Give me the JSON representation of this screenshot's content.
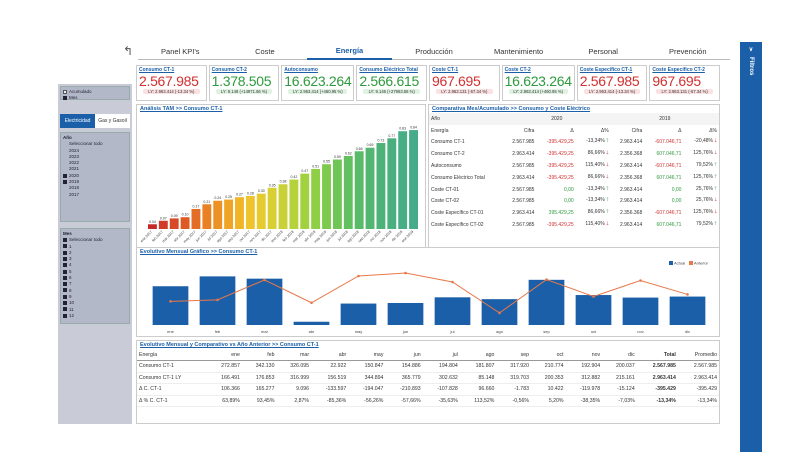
{
  "nav": {
    "tabs": [
      "Panel KPI's",
      "Coste",
      "Energía",
      "Producción",
      "Mantenimiento",
      "Personal",
      "Prevención"
    ],
    "active": 2
  },
  "filters_label": "Filtros",
  "left_panel": {
    "mode_options": [
      "Acumulado",
      "Mes"
    ],
    "toggle": [
      "Electricidad",
      "Gas y Gasoil"
    ],
    "year_header": "Año",
    "years": [
      "Seleccionar todo",
      "2024",
      "2023",
      "2022",
      "2021",
      "2020",
      "2019",
      "2018",
      "2017"
    ],
    "years_checked": [
      false,
      false,
      false,
      false,
      false,
      true,
      true,
      false,
      false
    ],
    "month_header": "Mes",
    "months": [
      "Seleccionar todo",
      "1",
      "2",
      "3",
      "4",
      "5",
      "6",
      "7",
      "8",
      "9",
      "10",
      "11",
      "12"
    ]
  },
  "kpis": [
    {
      "title": "Consumo CT-1",
      "value": "2.567.985",
      "sub": "LY: 2.963.414 (-13.34 %)",
      "tone": "red"
    },
    {
      "title": "Consumo CT-2",
      "value": "1.378.505",
      "sub": "LY: 9.148 (+14971.66 %)",
      "tone": "green"
    },
    {
      "title": "Autoconsumo",
      "value": "16.623.264",
      "sub": "LY: 2.963.414 (+460.95 %)",
      "tone": "green"
    },
    {
      "title": "Consumo Eléctrico Total",
      "value": "2.566.615",
      "sub": "LY: 9.146 (+27963.66 %)",
      "tone": "green"
    },
    {
      "title": "Coste CT-1",
      "value": "967.695",
      "sub": "LY: 2.963.131 (-67.34 %)",
      "tone": "red"
    },
    {
      "title": "Coste CT-2",
      "value": "16.623.264",
      "sub": "LY: 2.963.414 (+460.95 %)",
      "tone": "green"
    },
    {
      "title": "Coste Específico CT-1",
      "value": "2.567.985",
      "sub": "LY: 2.963.414 (-13.34 %)",
      "tone": "red"
    },
    {
      "title": "Coste Específico CT-2",
      "value": "967.695",
      "sub": "LY: 2.963.131 (-67.34 %)",
      "tone": "red"
    }
  ],
  "tam": {
    "title": "Análisis TAM >> Consumo CT-1"
  },
  "comp": {
    "title": "Comparativa Mes/Acumulado >> Consumo y Coste Eléctrico",
    "year_label": "Año",
    "year_a": "2020",
    "year_b": "2019",
    "headers": [
      "Energía",
      "Cifra",
      "Δ",
      "Δ%",
      "Cifra",
      "Δ",
      "Δ%"
    ],
    "rows": [
      {
        "name": "Consumo CT-1",
        "c1": "2.567.985",
        "d1": "-395.429,25",
        "p1": "-13,34%",
        "a1": "up",
        "c2": "2.963.414",
        "d2": "-607.046,71",
        "p2": "-20,48%",
        "a2": "dn"
      },
      {
        "name": "Consumo CT-2",
        "c1": "2.963.414",
        "d1": "-395.429,25",
        "p1": "86,66%",
        "a1": "dn",
        "c2": "2.356.368",
        "d2": "607.046,71",
        "p2": "125,76%",
        "a2": "dn"
      },
      {
        "name": "Autoconsumo",
        "c1": "2.567.985",
        "d1": "-395.429,25",
        "p1": "115,40%",
        "a1": "dn",
        "c2": "2.963.414",
        "d2": "-607.046,71",
        "p2": "79,52%",
        "a2": "up"
      },
      {
        "name": "Consumo Eléctrico Total",
        "c1": "2.963.414",
        "d1": "-395.429,25",
        "p1": "86,66%",
        "a1": "dn",
        "c2": "2.356.368",
        "d2": "607.046,71",
        "p2": "125,76%",
        "a2": "up"
      },
      {
        "name": "Coste CT-01",
        "c1": "2.567.985",
        "d1": "0,00",
        "p1": "-13,34%",
        "a1": "up",
        "c2": "2.963.414",
        "d2": "0,00",
        "p2": "25,76%",
        "a2": "up"
      },
      {
        "name": "Coste CT-02",
        "c1": "2.567.985",
        "d1": "0,00",
        "p1": "-13,34%",
        "a1": "up",
        "c2": "2.963.414",
        "d2": "0,00",
        "p2": "25,76%",
        "a2": "dn"
      },
      {
        "name": "Coste Específico CT-01",
        "c1": "2.963.414",
        "d1": "395.429,25",
        "p1": "86,66%",
        "a1": "up",
        "c2": "2.356.368",
        "d2": "-607.046,71",
        "p2": "125,76%",
        "a2": "dn"
      },
      {
        "name": "Coste Específico CT-02",
        "c1": "2.567.985",
        "d1": "-395.429,25",
        "p1": "115,40%",
        "a1": "dn",
        "c2": "2.963.414",
        "d2": "607.046,71",
        "p2": "79,52%",
        "a2": "up"
      }
    ]
  },
  "evo": {
    "title": "Evolutivo Mensual Gráfico >> Consumo CT-1"
  },
  "monthly": {
    "title": "Evolutivo Mensual y Comparativo vs Año Anterior >> Consumo CT-1",
    "headers": [
      "Energía",
      "ene",
      "feb",
      "mar",
      "abr",
      "may",
      "jun",
      "jul",
      "ago",
      "sep",
      "oct",
      "nov",
      "dic",
      "Total",
      "Promedio"
    ],
    "rows": [
      [
        "Consumo CT-1",
        "272.857",
        "342.130",
        "326.095",
        "22.922",
        "150.847",
        "154.886",
        "194.804",
        "181.807",
        "317.920",
        "210.774",
        "192.904",
        "200.037",
        "2.567.985",
        "2.567.985"
      ],
      [
        "Consumo CT-1 LY",
        "166.491",
        "176.853",
        "316.999",
        "156.519",
        "344.894",
        "365.779",
        "302.632",
        "85.148",
        "319.703",
        "200.353",
        "312.882",
        "215.161",
        "2.963.414",
        "2.963.414"
      ],
      [
        "Δ C. CT-1",
        "106.366",
        "165.277",
        "9.096",
        "-133.597",
        "-194.047",
        "-210.893",
        "-107.828",
        "96.660",
        "-1.783",
        "10.422",
        "-119.978",
        "-15.124",
        "-395.429",
        "-395.429"
      ],
      [
        "Δ % C. CT-1",
        "63,89%",
        "93,45%",
        "2,87%",
        "-85,36%",
        "-56,26%",
        "-57,66%",
        "-35,63%",
        "113,52%",
        "-0,56%",
        "5,20%",
        "-38,35%",
        "-7,03%",
        "-13,34%",
        "-13,34%"
      ]
    ]
  },
  "chart_data": [
    {
      "type": "bar",
      "title": "Análisis TAM >> Consumo CT-1",
      "categories": [
        "ene 2017",
        "feb 2017",
        "mar 2017",
        "abr 2017",
        "may 2017",
        "jun 2017",
        "jul 2017",
        "ago 2017",
        "sep 2017",
        "oct 2017",
        "nov 2017",
        "dic 2017",
        "ene 2018",
        "feb 2018",
        "mar 2018",
        "abr 2018",
        "may 2018",
        "jun 2018",
        "jul 2018",
        "ago 2018",
        "sep 2018",
        "oct 2018",
        "nov 2018",
        "dic 2018",
        "ene 2019"
      ],
      "values": [
        0.04,
        0.07,
        0.09,
        0.1,
        0.17,
        0.21,
        0.24,
        0.25,
        0.27,
        0.28,
        0.3,
        0.35,
        0.38,
        0.42,
        0.47,
        0.51,
        0.55,
        0.59,
        0.62,
        0.66,
        0.69,
        0.73,
        0.77,
        0.83,
        0.84
      ],
      "ylim": [
        0,
        0.9
      ]
    },
    {
      "type": "bar",
      "title": "Evolutivo Mensual Gráfico >> Consumo CT-1",
      "categories": [
        "ene",
        "feb",
        "mar",
        "abr",
        "may",
        "jun",
        "jul",
        "ago",
        "sep",
        "oct",
        "nov",
        "dic"
      ],
      "series": [
        {
          "name": "Actual",
          "type": "bar",
          "values": [
            272857,
            342130,
            326095,
            22922,
            150847,
            154886,
            194804,
            181807,
            317920,
            210774,
            192904,
            200037
          ]
        },
        {
          "name": "Anterior",
          "type": "line",
          "values": [
            166491,
            176853,
            316999,
            156519,
            344894,
            365779,
            302632,
            85148,
            319703,
            200353,
            312882,
            215161
          ]
        }
      ],
      "colors": {
        "Actual": "#1a5fa8",
        "Anterior": "#e8784a"
      },
      "legend": "top-right",
      "ylim": [
        0,
        380000
      ]
    }
  ]
}
